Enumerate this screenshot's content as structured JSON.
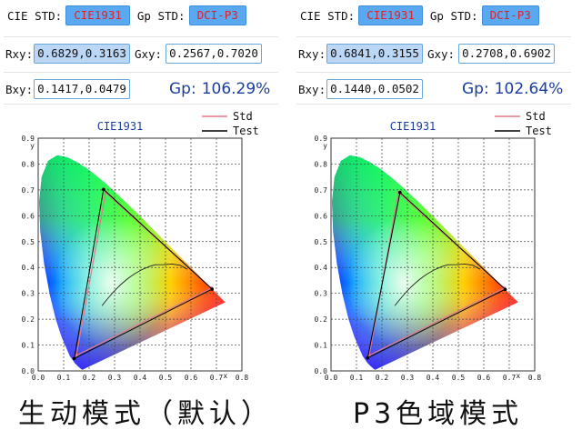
{
  "panels": [
    {
      "cie_label": "CIE STD:",
      "cie_value": "CIE1931",
      "gp_label": "Gp STD:",
      "gp_value": "DCI-P3",
      "rxy_label": "Rxy:",
      "rxy_value": "0.6829,0.3163",
      "gxy_label": "Gxy:",
      "gxy_value": "0.2567,0.7020",
      "bxy_label": "Bxy:",
      "bxy_value": "0.1417,0.0479",
      "gp_result_label": "Gp:",
      "gp_result_value": "106.29%",
      "caption": "生动模式（默认）",
      "chart_data": {
        "type": "scatter",
        "title": "CIE1931",
        "xlabel": "x",
        "ylabel": "y",
        "xlim": [
          0,
          0.8
        ],
        "ylim": [
          0,
          0.9
        ],
        "x_ticks": [
          "0.0",
          "0.1",
          "0.2",
          "0.3",
          "0.4",
          "0.5",
          "0.6",
          "0.7",
          "0.8"
        ],
        "y_ticks": [
          "0.0",
          "0.1",
          "0.2",
          "0.3",
          "0.4",
          "0.5",
          "0.6",
          "0.7",
          "0.8",
          "0.9"
        ],
        "grid": true,
        "legend": "top-right",
        "series": [
          {
            "name": "Std",
            "color": "#e07a8a",
            "points": [
              [
                0.68,
                0.32
              ],
              [
                0.265,
                0.69
              ],
              [
                0.15,
                0.06
              ]
            ]
          },
          {
            "name": "Test",
            "color": "#000000",
            "points": [
              [
                0.6829,
                0.3163
              ],
              [
                0.2567,
                0.702
              ],
              [
                0.1417,
                0.0479
              ]
            ]
          }
        ]
      }
    },
    {
      "cie_label": "CIE STD:",
      "cie_value": "CIE1931",
      "gp_label": "Gp STD:",
      "gp_value": "DCI-P3",
      "rxy_label": "Rxy:",
      "rxy_value": "0.6841,0.3155",
      "gxy_label": "Gxy:",
      "gxy_value": "0.2708,0.6902",
      "bxy_label": "Bxy:",
      "bxy_value": "0.1440,0.0502",
      "gp_result_label": "Gp:",
      "gp_result_value": "102.64%",
      "caption": "P3色域模式",
      "chart_data": {
        "type": "scatter",
        "title": "CIE1931",
        "xlabel": "x",
        "ylabel": "y",
        "xlim": [
          0,
          0.8
        ],
        "ylim": [
          0,
          0.9
        ],
        "x_ticks": [
          "0.0",
          "0.1",
          "0.2",
          "0.3",
          "0.4",
          "0.5",
          "0.6",
          "0.7",
          "0.8"
        ],
        "y_ticks": [
          "0.0",
          "0.1",
          "0.2",
          "0.3",
          "0.4",
          "0.5",
          "0.6",
          "0.7",
          "0.8",
          "0.9"
        ],
        "grid": true,
        "legend": "top-right",
        "series": [
          {
            "name": "Std",
            "color": "#e07a8a",
            "points": [
              [
                0.68,
                0.32
              ],
              [
                0.265,
                0.69
              ],
              [
                0.15,
                0.06
              ]
            ]
          },
          {
            "name": "Test",
            "color": "#000000",
            "points": [
              [
                0.6841,
                0.3155
              ],
              [
                0.2708,
                0.6902
              ],
              [
                0.144,
                0.0502
              ]
            ]
          }
        ]
      }
    }
  ]
}
